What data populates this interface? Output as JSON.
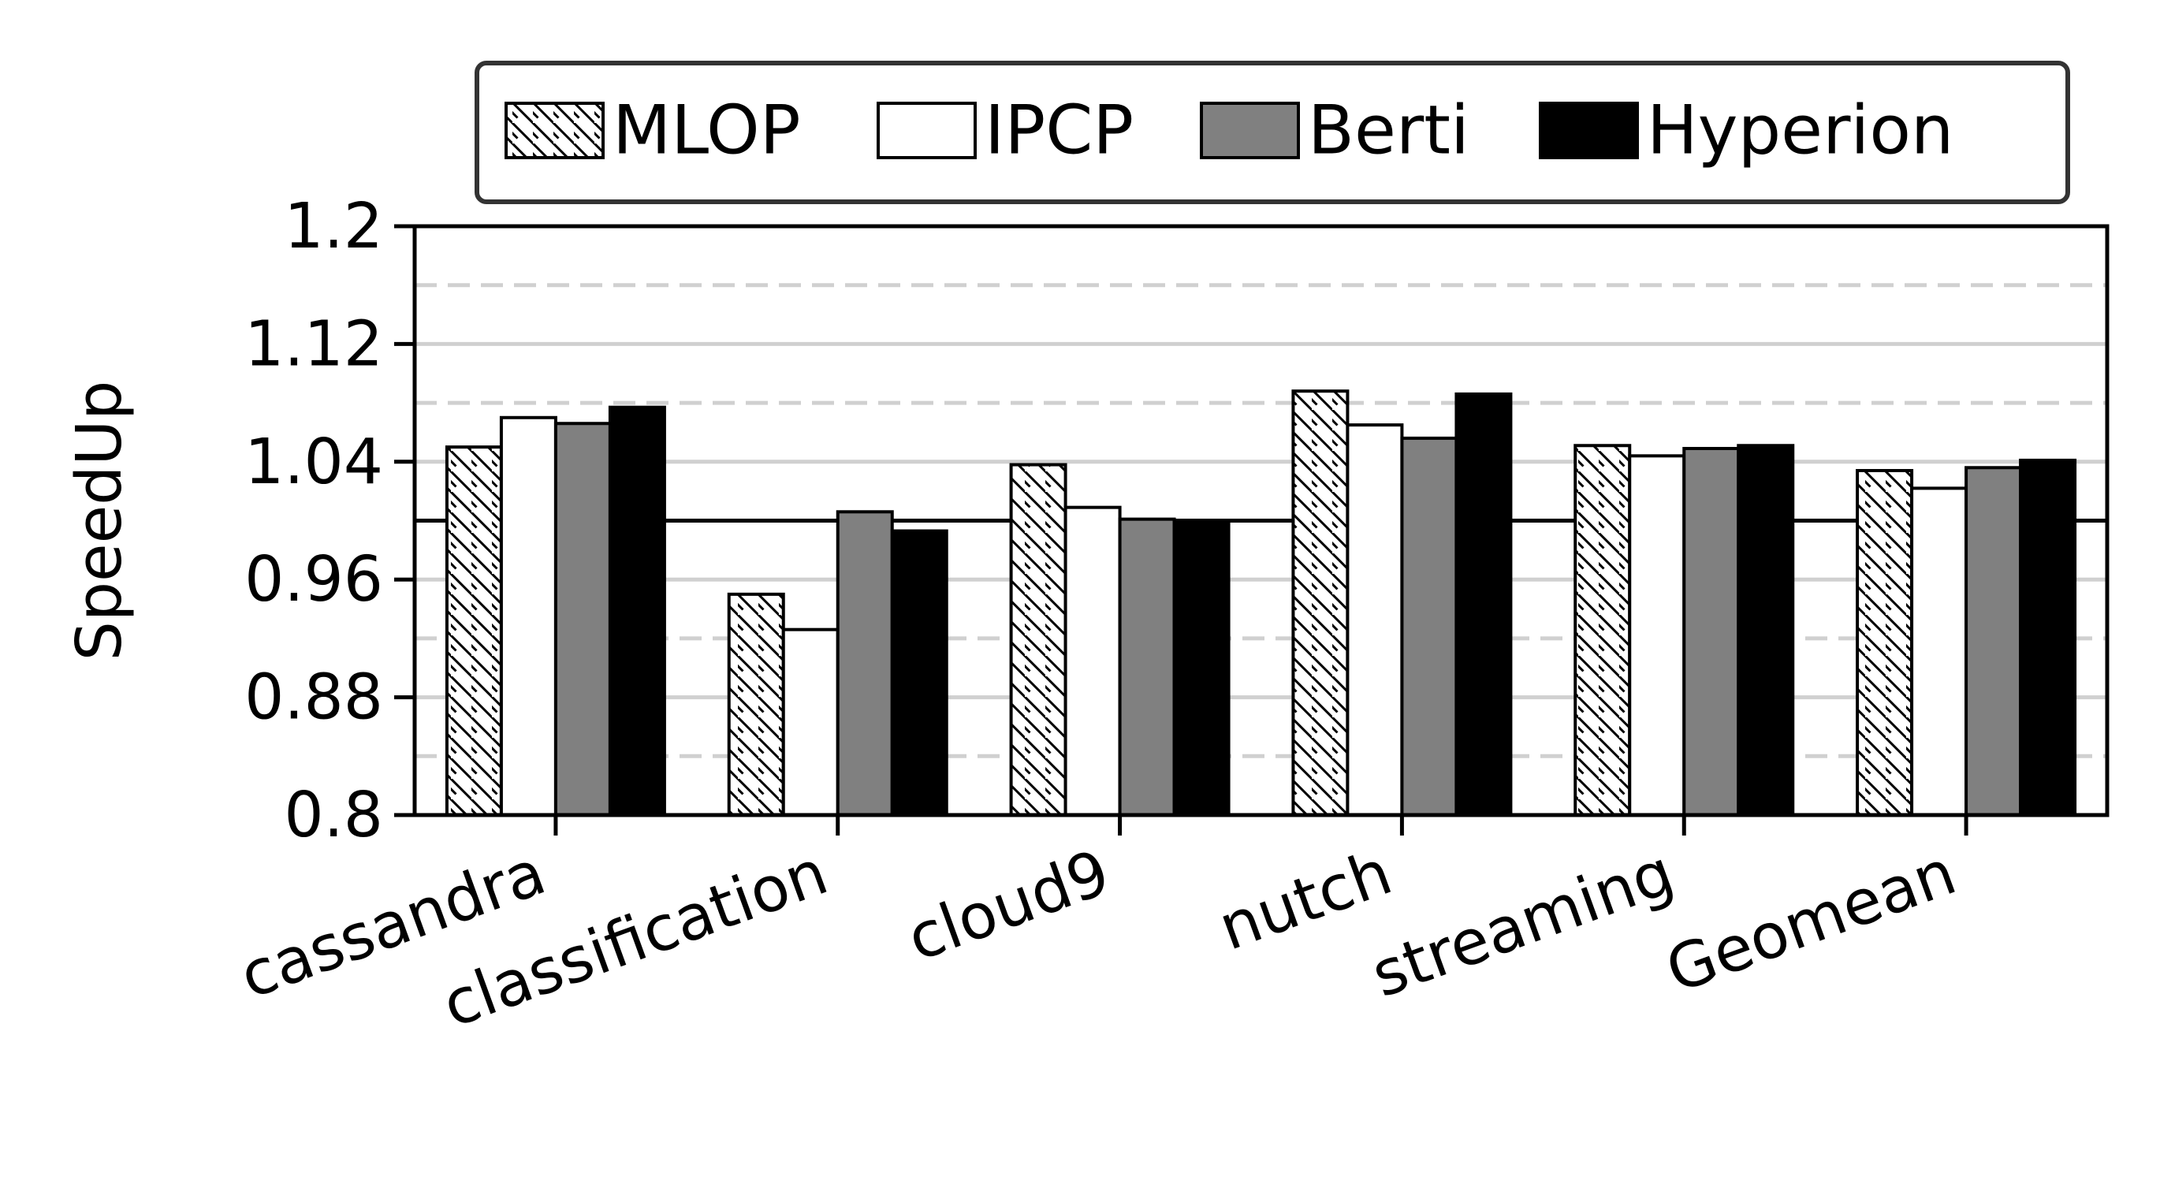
{
  "chart_data": {
    "type": "bar",
    "ylabel": "SpeedUp",
    "ylim": [
      0.8,
      1.2
    ],
    "yticks": [
      "0.8",
      "0.88",
      "0.96",
      "1.04",
      "1.12",
      "1.2"
    ],
    "reference_line": 1.0,
    "grid": "horizontal, solid at labeled ticks and dashed between them",
    "legend_position": "top, above plot",
    "categories": [
      "cassandra",
      "classification",
      "cloud9",
      "nutch",
      "streaming",
      "Geomean"
    ],
    "series": [
      {
        "name": "MLOP",
        "values": [
          1.05,
          0.95,
          1.038,
          1.088,
          1.051,
          1.034
        ],
        "color": "#ffffff",
        "pattern": "hatch"
      },
      {
        "name": "IPCP",
        "values": [
          1.07,
          0.926,
          1.009,
          1.065,
          1.044,
          1.022
        ],
        "color": "#ffffff",
        "pattern": "none"
      },
      {
        "name": "Berti",
        "values": [
          1.066,
          1.006,
          1.001,
          1.056,
          1.049,
          1.036
        ],
        "color": "#808080",
        "pattern": "none"
      },
      {
        "name": "Hyperion",
        "values": [
          1.077,
          0.993,
          1.0,
          1.086,
          1.051,
          1.041
        ],
        "color": "#000000",
        "pattern": "none"
      }
    ]
  }
}
